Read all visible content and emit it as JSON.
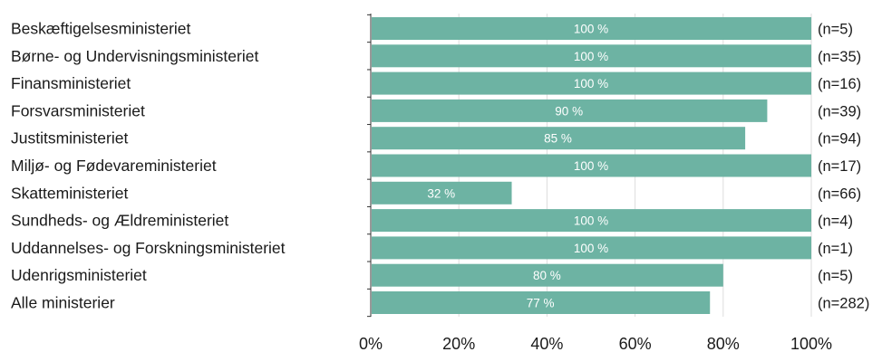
{
  "chart_data": {
    "type": "bar",
    "orientation": "horizontal",
    "categories": [
      "Beskæftigelsesministeriet",
      "Børne- og Undervisningsministeriet",
      "Finansministeriet",
      "Forsvarsministeriet",
      "Justitsministeriet",
      "Miljø- og Fødevareministeriet",
      "Skatteministeriet",
      "Sundheds- og Ældreministeriet",
      "Uddannelses- og Forskningsministeriet",
      "Udenrigsministeriet",
      "Alle ministerier"
    ],
    "values": [
      100,
      100,
      100,
      90,
      85,
      100,
      32,
      100,
      100,
      80,
      77
    ],
    "value_labels": [
      "100 %",
      "100 %",
      "100 %",
      "90 %",
      "85 %",
      "100 %",
      "32 %",
      "100 %",
      "100 %",
      "80 %",
      "77 %"
    ],
    "n_labels": [
      "(n=5)",
      "(n=35)",
      "(n=16)",
      "(n=39)",
      "(n=94)",
      "(n=17)",
      "(n=66)",
      "(n=4)",
      "(n=1)",
      "(n=5)",
      "(n=282)"
    ],
    "xlim": [
      0,
      100
    ],
    "x_ticks": [
      0,
      20,
      40,
      60,
      80,
      100
    ],
    "x_tick_labels": [
      "0%",
      "20%",
      "40%",
      "60%",
      "80%",
      "100%"
    ],
    "grid": true,
    "bar_color": "#6db3a3",
    "title": "",
    "xlabel": "",
    "ylabel": ""
  }
}
